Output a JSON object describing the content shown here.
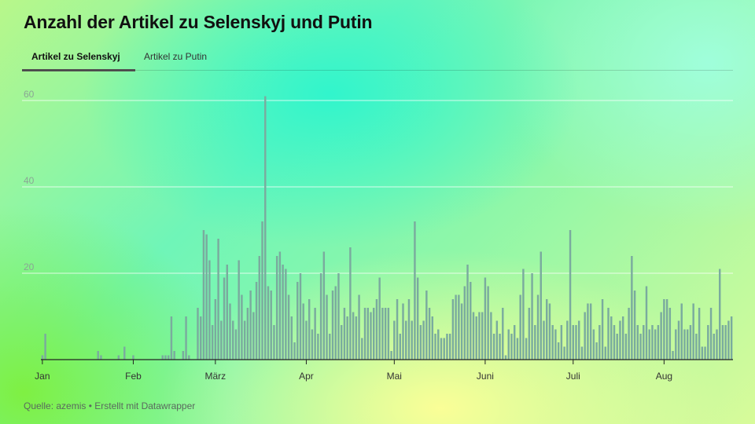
{
  "header": {
    "title": "Anzahl der Artikel zu Selenskyj und Putin"
  },
  "tabs": [
    {
      "label": "Artikel zu Selenskyj",
      "active": true
    },
    {
      "label": "Artikel zu Putin",
      "active": false
    }
  ],
  "footer": {
    "source": "Quelle: azemis • Erstellt mit Datawrapper"
  },
  "colors": {
    "bar": "#7aab9e",
    "grid": "#ffffff",
    "axis": "#222222"
  },
  "chart_data": {
    "type": "bar",
    "title": "Anzahl der Artikel zu Selenskyj und Putin",
    "xlabel": "",
    "ylabel": "",
    "ylim": [
      0,
      60
    ],
    "yticks": [
      20,
      40,
      60
    ],
    "grid": true,
    "x_tick_labels": [
      "Jan",
      "Feb",
      "März",
      "Apr",
      "Mai",
      "Juni",
      "Juli",
      "Aug"
    ],
    "series": [
      {
        "values": [
          1,
          6,
          0,
          0,
          0,
          0,
          0,
          0,
          0,
          0,
          0,
          0,
          0,
          0,
          0,
          0,
          0,
          0,
          0,
          2,
          1,
          0,
          0,
          0,
          0,
          0,
          1,
          0,
          3,
          0,
          0,
          1,
          0,
          0,
          0,
          0,
          0,
          0,
          0,
          0,
          0,
          1,
          1,
          1,
          10,
          2,
          0,
          0,
          2,
          10,
          1,
          0,
          0,
          12,
          10,
          30,
          29,
          23,
          8,
          14,
          28,
          9,
          19,
          22,
          13,
          9,
          7,
          23,
          15,
          9,
          12,
          16,
          11,
          18,
          24,
          32,
          61,
          17,
          16,
          8,
          24,
          25,
          22,
          21,
          15,
          10,
          4,
          18,
          20,
          13,
          9,
          14,
          7,
          12,
          6,
          20,
          25,
          15,
          6,
          16,
          17,
          20,
          8,
          12,
          10,
          26,
          11,
          10,
          15,
          5,
          12,
          12,
          11,
          12,
          14,
          19,
          12,
          12,
          12,
          2,
          9,
          14,
          6,
          13,
          9,
          14,
          9,
          32,
          19,
          8,
          9,
          16,
          12,
          10,
          6,
          7,
          5,
          5,
          6,
          6,
          14,
          15,
          15,
          13,
          17,
          22,
          18,
          11,
          10,
          11,
          11,
          19,
          17,
          11,
          6,
          9,
          6,
          12,
          1,
          7,
          6,
          8,
          5,
          15,
          21,
          5,
          12,
          20,
          8,
          15,
          25,
          9,
          14,
          13,
          8,
          7,
          4,
          8,
          3,
          9,
          30,
          8,
          8,
          9,
          3,
          11,
          13,
          13,
          7,
          4,
          8,
          14,
          3,
          12,
          10,
          8,
          6,
          9,
          10,
          6,
          12,
          24,
          16,
          8,
          6,
          8,
          17,
          7,
          8,
          7,
          8,
          11,
          14,
          14,
          12,
          2,
          7,
          9,
          13,
          7,
          7,
          8,
          13,
          6,
          12,
          3,
          3,
          8,
          12,
          6,
          7,
          21,
          8,
          8,
          9,
          10
        ]
      }
    ]
  }
}
